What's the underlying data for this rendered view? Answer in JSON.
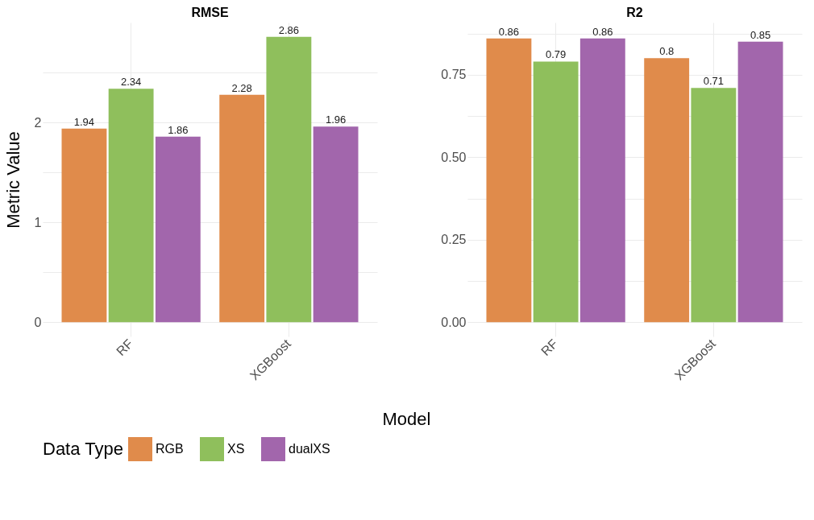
{
  "chart_data": [
    {
      "type": "bar",
      "title": "RMSE",
      "ylabel": "Metric Value",
      "xlabel": "Model",
      "legend_title": "Data Type",
      "legend": "bottom",
      "grid": true,
      "data_labels": true,
      "categories": [
        "RF",
        "XGBoost"
      ],
      "series": [
        {
          "name": "RGB",
          "color": "#e08b4b",
          "values": [
            1.94,
            2.28
          ]
        },
        {
          "name": "XS",
          "color": "#8fbf5c",
          "values": [
            2.34,
            2.86
          ]
        },
        {
          "name": "dualXS",
          "color": "#a266ac",
          "values": [
            1.86,
            1.96
          ]
        }
      ],
      "ylim": [
        -0.143,
        3.003
      ],
      "yticks": [
        0,
        {
          "value": 0.5,
          "label": null
        },
        1,
        {
          "value": 1.5,
          "label": null
        },
        2,
        {
          "value": 2.5,
          "label": null
        }
      ]
    },
    {
      "type": "bar",
      "title": "R2",
      "legend": "bottom",
      "grid": true,
      "data_labels": true,
      "categories": [
        "RF",
        "XGBoost"
      ],
      "series": [
        {
          "name": "RGB",
          "color": "#e08b4b",
          "values": [
            0.86,
            0.8
          ]
        },
        {
          "name": "XS",
          "color": "#8fbf5c",
          "values": [
            0.79,
            0.71
          ]
        },
        {
          "name": "dualXS",
          "color": "#a266ac",
          "values": [
            0.86,
            0.85
          ]
        }
      ],
      "ylim": [
        -0.043,
        0.908
      ],
      "yticks": [
        {
          "value": 0,
          "label": "0.00"
        },
        {
          "value": 0.125,
          "label": null
        },
        {
          "value": 0.25,
          "label": "0.25"
        },
        {
          "value": 0.375,
          "label": null
        },
        {
          "value": 0.5,
          "label": "0.50"
        },
        {
          "value": 0.625,
          "label": null
        },
        {
          "value": 0.75,
          "label": "0.75"
        },
        {
          "value": 0.875,
          "label": null
        }
      ]
    }
  ]
}
